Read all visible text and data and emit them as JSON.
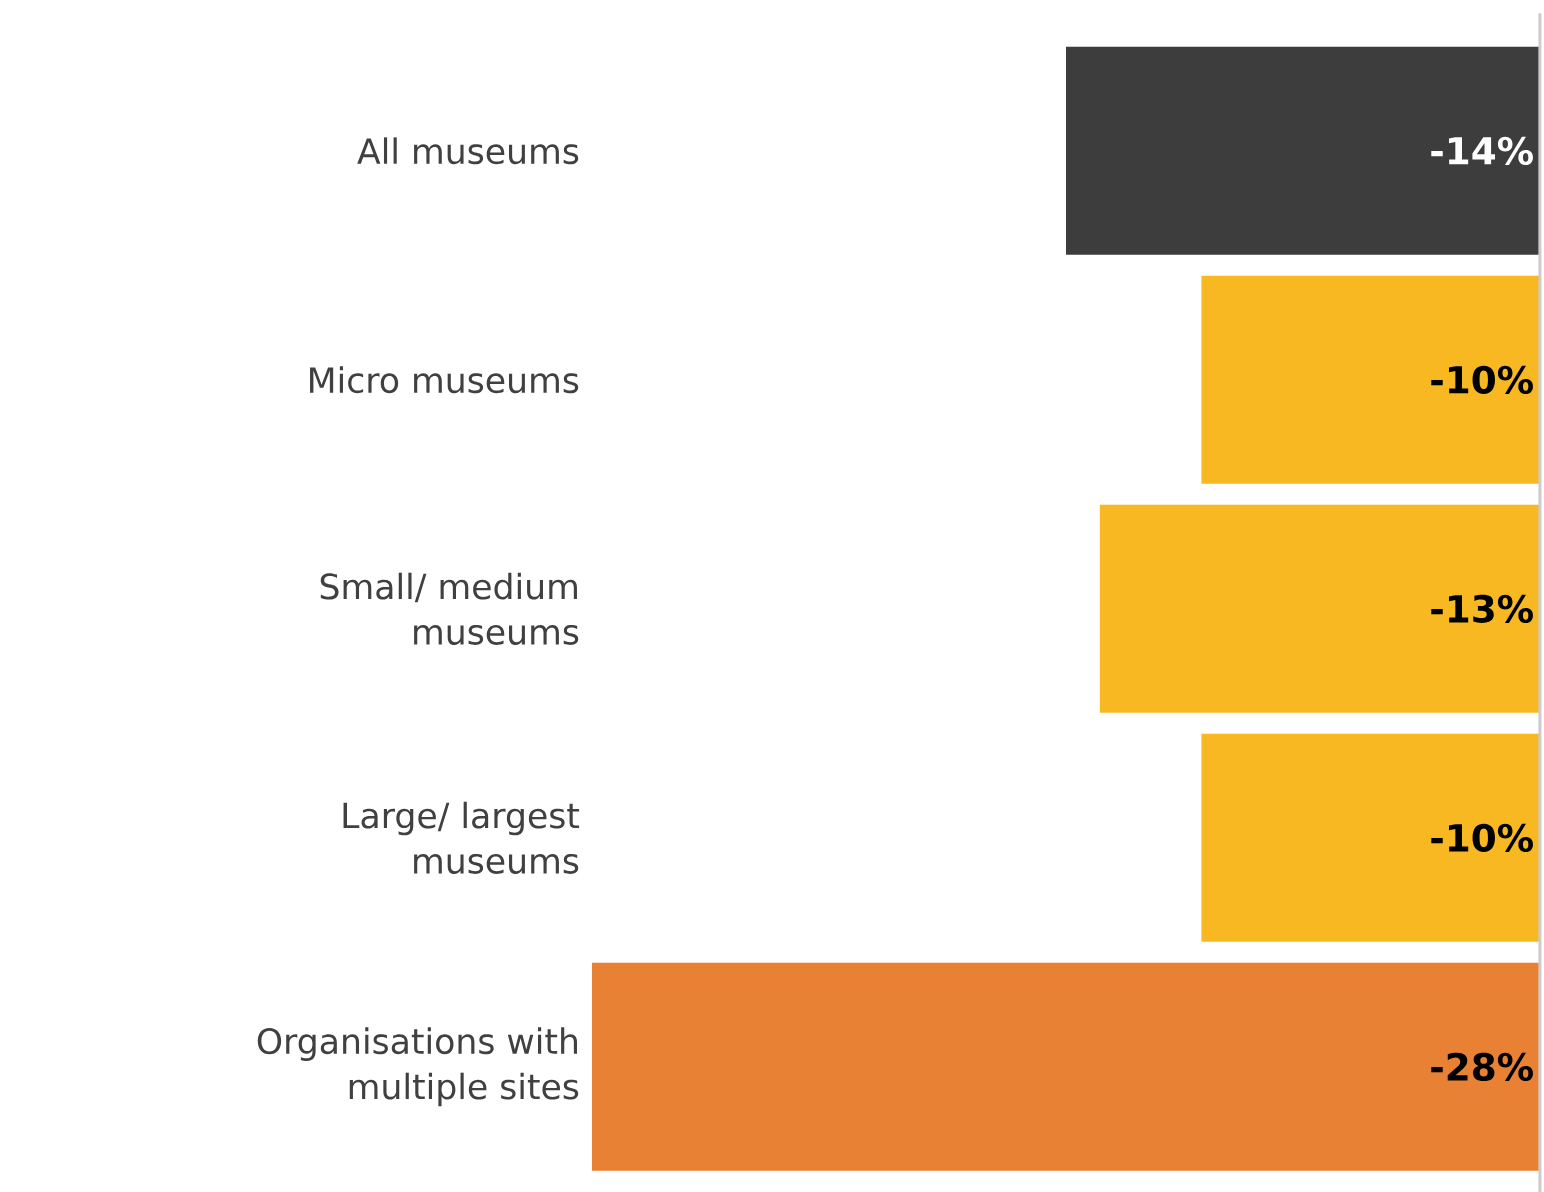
{
  "chart_data": {
    "type": "bar",
    "orientation": "horizontal",
    "categories": [
      "All museums",
      "Micro museums",
      "Small/ medium museums",
      "Large/ largest museums",
      "Organisations with multiple sites"
    ],
    "values": [
      -14,
      -10,
      -13,
      -10,
      -28
    ],
    "colors": [
      "#3d3d3d",
      "#f8b822",
      "#f8b822",
      "#f8b822",
      "#e98135"
    ],
    "value_labels": [
      "-14%",
      "-10%",
      "-13%",
      "-10%",
      "-28%"
    ],
    "xlim": [
      -28,
      0
    ],
    "tick_labels": "y"
  }
}
